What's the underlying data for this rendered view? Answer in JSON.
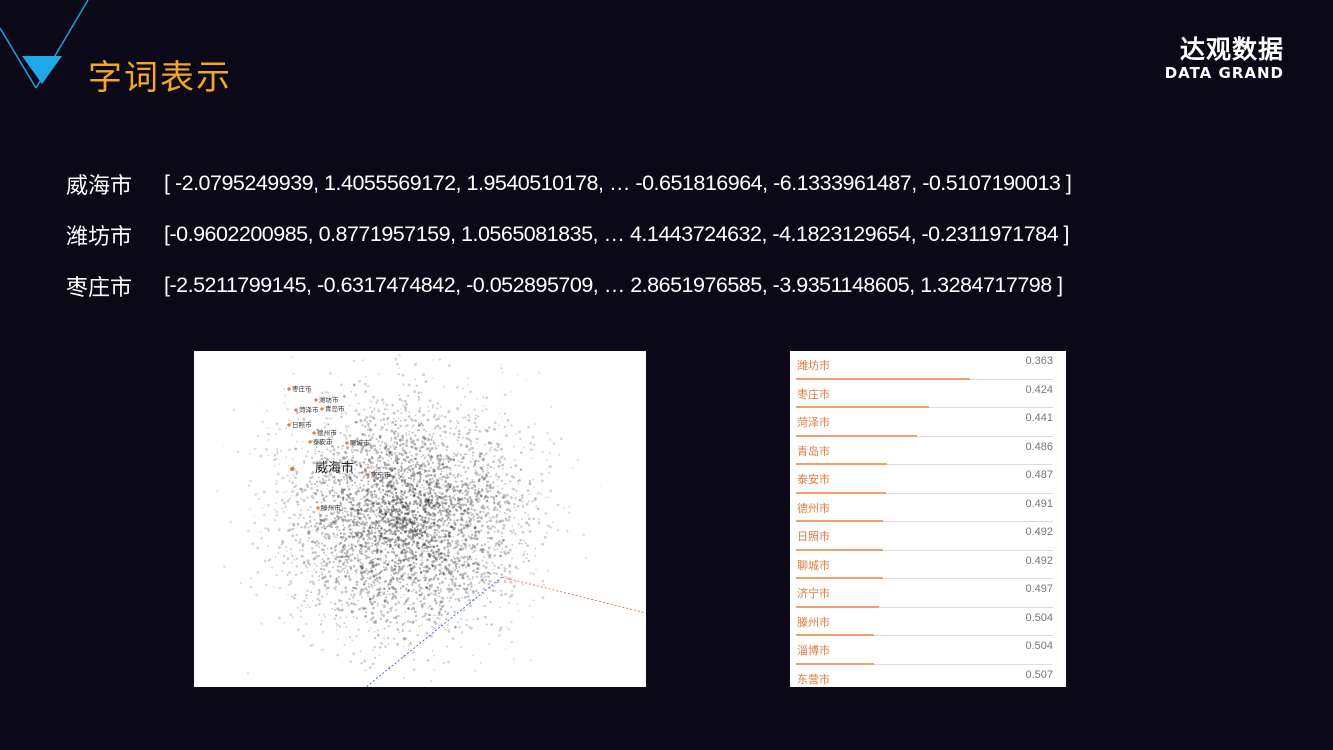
{
  "header": {
    "title": "字词表示",
    "logo_cn": "达观数据",
    "logo_en": "DATA GRAND"
  },
  "colors": {
    "accent": "#f5a623",
    "background": "#0b0818",
    "corner": "#1e9fe0",
    "label": "#e07b3c"
  },
  "vectors": [
    {
      "name": "威海市",
      "values": "[ -2.0795249939, 1.4055569172, 1.9540510178, … -0.651816964, -6.1333961487, -0.5107190013 ]"
    },
    {
      "name": "潍坊市",
      "values": "[-0.9602200985, 0.8771957159, 1.0565081835, … 4.1443724632, -4.1823129654, -0.2311971784 ]"
    },
    {
      "name": "枣庄市",
      "values": "[-2.5211799145, -0.6317474842, -0.052895709, … 2.8651976585, -3.9351148605, 1.3284717798 ]"
    }
  ],
  "scatter": {
    "focus_label": "威海市",
    "labels": [
      "枣庄市",
      "潍坊市",
      "菏泽市",
      "青岛市",
      "日照市",
      "德州市",
      "泰安市",
      "聊城市",
      "济宁市",
      "滕州市"
    ]
  },
  "neighbors": [
    {
      "name": "潍坊市",
      "score": "0.363",
      "value": 0.363
    },
    {
      "name": "枣庄市",
      "score": "0.424",
      "value": 0.424
    },
    {
      "name": "菏泽市",
      "score": "0.441",
      "value": 0.441
    },
    {
      "name": "青岛市",
      "score": "0.486",
      "value": 0.486
    },
    {
      "name": "泰安市",
      "score": "0.487",
      "value": 0.487
    },
    {
      "name": "德州市",
      "score": "0.491",
      "value": 0.491
    },
    {
      "name": "日照市",
      "score": "0.492",
      "value": 0.492
    },
    {
      "name": "聊城市",
      "score": "0.492",
      "value": 0.492
    },
    {
      "name": "济宁市",
      "score": "0.497",
      "value": 0.497
    },
    {
      "name": "滕州市",
      "score": "0.504",
      "value": 0.504
    },
    {
      "name": "淄博市",
      "score": "0.504",
      "value": 0.504
    },
    {
      "name": "东营市",
      "score": "0.507",
      "value": 0.507
    }
  ]
}
